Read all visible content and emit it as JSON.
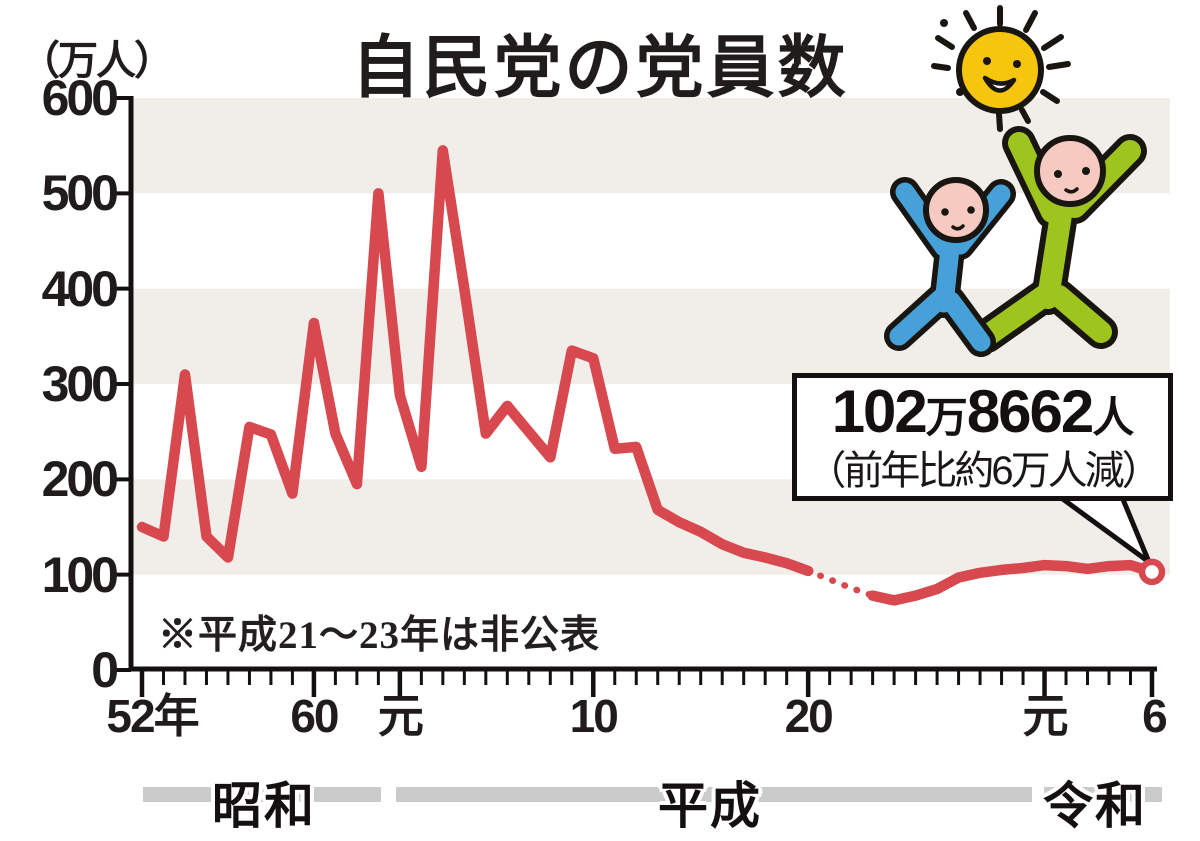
{
  "title": "自民党の党員数",
  "y_axis": {
    "unit": "（万人）",
    "ticks": [
      "600",
      "500",
      "400",
      "300",
      "200",
      "100",
      "0"
    ]
  },
  "x_axis": {
    "majors": [
      {
        "label": "52年",
        "year": 1977
      },
      {
        "label": "60",
        "year": 1985
      },
      {
        "label": "元",
        "year": 1989
      },
      {
        "label": "10",
        "year": 1998
      },
      {
        "label": "20",
        "year": 2008
      },
      {
        "label": "元",
        "year": 2019
      },
      {
        "label": "6",
        "year": 2024
      }
    ]
  },
  "eras": [
    {
      "label": "昭和"
    },
    {
      "label": "平成"
    },
    {
      "label": "令和"
    }
  ],
  "note": "※平成21〜23年は非公表",
  "callout": {
    "value_main_1": "102",
    "value_unit_1": "万",
    "value_main_2": "8662",
    "value_unit_2": "人",
    "sub": "（前年比約6万人減）"
  },
  "chart_data": {
    "type": "line",
    "title": "自民党の党員数",
    "ylabel": "万人",
    "ylim": [
      0,
      600
    ],
    "grid": "horizontal alternating bands of 100",
    "legend": "none",
    "x_years": [
      1977,
      1978,
      1979,
      1980,
      1981,
      1982,
      1983,
      1984,
      1985,
      1986,
      1987,
      1988,
      1989,
      1990,
      1991,
      1992,
      1993,
      1994,
      1995,
      1996,
      1997,
      1998,
      1999,
      2000,
      2001,
      2002,
      2003,
      2004,
      2005,
      2006,
      2007,
      2008,
      2009,
      2010,
      2011,
      2012,
      2013,
      2014,
      2015,
      2016,
      2017,
      2018,
      2019,
      2020,
      2021,
      2022,
      2023,
      2024
    ],
    "values": [
      150,
      140,
      310,
      140,
      118,
      255,
      247,
      185,
      364,
      248,
      195,
      500,
      288,
      213,
      545,
      400,
      248,
      277,
      250,
      223,
      335,
      327,
      232,
      234,
      168,
      155,
      145,
      132,
      123,
      118,
      112,
      104,
      95,
      86,
      78,
      73,
      78,
      85,
      97,
      102,
      105,
      107,
      110,
      109,
      106,
      109,
      110,
      102.8662
    ],
    "unpublished_years": [
      2009,
      2010,
      2011
    ],
    "end_marker": {
      "year": 2024,
      "value": 102.8662
    },
    "line_color": "#d8484f",
    "band_color": "#f1eeea",
    "axis_color": "#141010"
  },
  "illustration": {
    "description": "smiling sun with two cheering children",
    "sun_color": "#f6c50e",
    "blue_child_color": "#45a1d8",
    "green_child_color": "#9ec41e",
    "face_color": "#f6cac1",
    "outline_color": "#191511"
  }
}
